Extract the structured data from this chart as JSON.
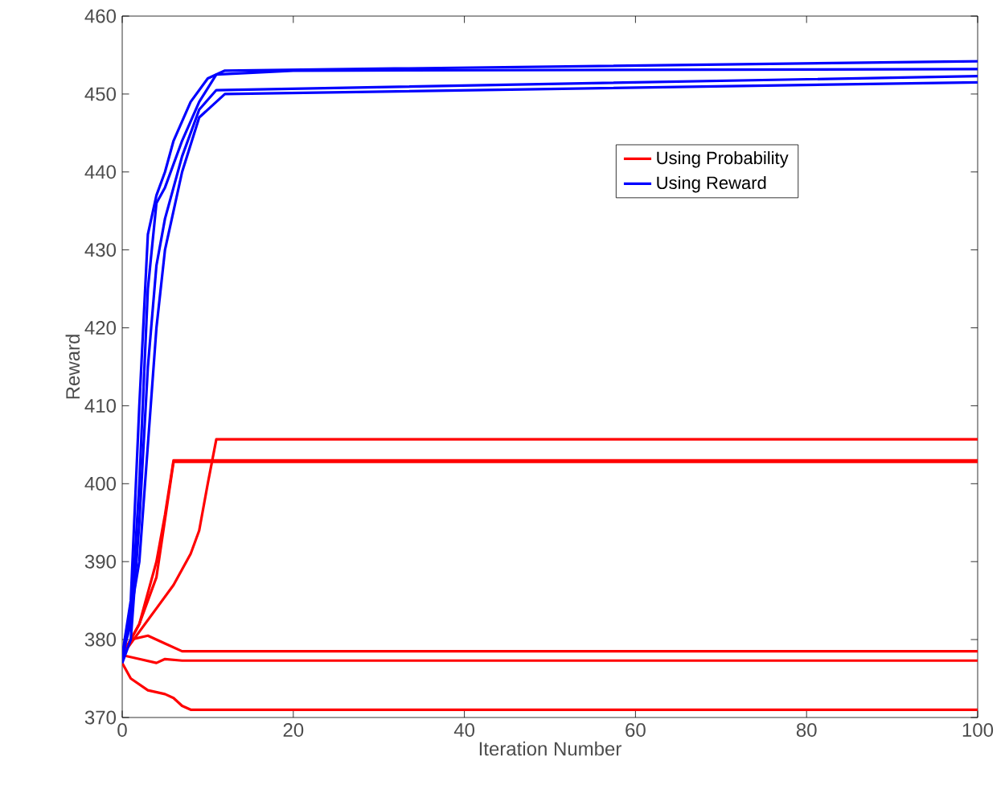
{
  "chart_data": {
    "type": "line",
    "xlabel": "Iteration Number",
    "ylabel": "Reward",
    "xlim": [
      0,
      100
    ],
    "ylim": [
      370,
      460
    ],
    "xticks": [
      0,
      20,
      40,
      60,
      80,
      100
    ],
    "yticks": [
      370,
      380,
      390,
      400,
      410,
      420,
      430,
      440,
      450,
      460
    ],
    "legend": "top right",
    "marker": "none",
    "line_style": "solid",
    "grid": false,
    "series": [
      {
        "name": "Using Probability",
        "color": "#ff0000",
        "x": [
          0,
          2,
          4,
          5,
          6,
          100
        ],
        "values": [
          378,
          382,
          390,
          396,
          403,
          403
        ]
      },
      {
        "color": "#ff0000",
        "x": [
          0,
          2,
          4,
          6,
          8,
          9,
          10,
          11,
          100
        ],
        "values": [
          378,
          381,
          384,
          387,
          391,
          394,
          400,
          405.7,
          405.7
        ]
      },
      {
        "color": "#ff0000",
        "x": [
          0,
          2,
          4,
          6,
          7,
          100
        ],
        "values": [
          378,
          382,
          388,
          402.8,
          402.8,
          402.8
        ]
      },
      {
        "color": "#ff0000",
        "x": [
          0,
          1,
          3,
          5,
          7,
          100
        ],
        "values": [
          378,
          380,
          380.5,
          379.5,
          378.5,
          378.5
        ]
      },
      {
        "color": "#ff0000",
        "x": [
          0,
          2,
          4,
          5,
          7,
          100
        ],
        "values": [
          378,
          377.5,
          377,
          377.5,
          377.3,
          377.3
        ]
      },
      {
        "color": "#ff0000",
        "x": [
          0,
          1,
          3,
          5,
          6,
          7,
          8,
          100
        ],
        "values": [
          377,
          375,
          373.5,
          373,
          372.5,
          371.5,
          371,
          371
        ]
      },
      {
        "name": "Using Reward",
        "color": "#0000ff",
        "x": [
          0,
          1,
          2,
          3,
          4,
          5,
          6,
          8,
          10,
          12,
          100
        ],
        "values": [
          378,
          385,
          410,
          432,
          437,
          440,
          444,
          449,
          452,
          453,
          454.2
        ]
      },
      {
        "color": "#0000ff",
        "x": [
          0,
          1,
          2,
          3,
          4,
          5,
          7,
          9,
          11,
          20,
          100
        ],
        "values": [
          378,
          382,
          400,
          425,
          436,
          438,
          444,
          449,
          452.5,
          453,
          453.2
        ]
      },
      {
        "color": "#0000ff",
        "x": [
          0,
          1,
          2,
          3,
          4,
          5,
          7,
          9,
          11,
          100
        ],
        "values": [
          377,
          380,
          395,
          415,
          428,
          434,
          442,
          448,
          450.5,
          452.3
        ]
      },
      {
        "color": "#0000ff",
        "x": [
          0,
          2,
          3,
          4,
          5,
          7,
          9,
          12,
          100
        ],
        "values": [
          377,
          390,
          405,
          420,
          430,
          440,
          447,
          450,
          451.5
        ]
      }
    ]
  }
}
